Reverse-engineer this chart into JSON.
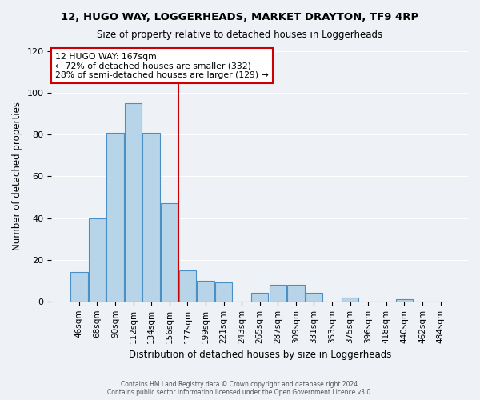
{
  "title": "12, HUGO WAY, LOGGERHEADS, MARKET DRAYTON, TF9 4RP",
  "subtitle": "Size of property relative to detached houses in Loggerheads",
  "xlabel": "Distribution of detached houses by size in Loggerheads",
  "ylabel": "Number of detached properties",
  "bar_labels": [
    "46sqm",
    "68sqm",
    "90sqm",
    "112sqm",
    "134sqm",
    "156sqm",
    "177sqm",
    "199sqm",
    "221sqm",
    "243sqm",
    "265sqm",
    "287sqm",
    "309sqm",
    "331sqm",
    "353sqm",
    "375sqm",
    "396sqm",
    "418sqm",
    "440sqm",
    "462sqm",
    "484sqm"
  ],
  "bar_values": [
    14,
    40,
    81,
    95,
    81,
    47,
    15,
    10,
    9,
    0,
    4,
    8,
    8,
    4,
    0,
    2,
    0,
    0,
    1,
    0,
    0
  ],
  "bar_color": "#b8d4e8",
  "bar_edge_color": "#4a90c4",
  "vline_x": 5.5,
  "vline_color": "#cc0000",
  "annotation_title": "12 HUGO WAY: 167sqm",
  "annotation_line1": "← 72% of detached houses are smaller (332)",
  "annotation_line2": "28% of semi-detached houses are larger (129) →",
  "annotation_box_color": "#ffffff",
  "annotation_box_edge_color": "#cc0000",
  "ylim": [
    0,
    120
  ],
  "footnote1": "Contains HM Land Registry data © Crown copyright and database right 2024.",
  "footnote2": "Contains public sector information licensed under the Open Government Licence v3.0.",
  "background_color": "#eef2f7"
}
